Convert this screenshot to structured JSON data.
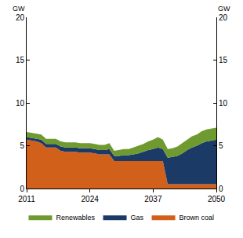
{
  "chart_data": {
    "type": "area",
    "stacked": true,
    "grid": false,
    "legend": "bottom",
    "y_label": "GW",
    "y2_label": "GW",
    "x": [
      2011,
      2012,
      2013,
      2014,
      2015,
      2016,
      2017,
      2018,
      2019,
      2020,
      2021,
      2022,
      2023,
      2024,
      2025,
      2026,
      2027,
      2028,
      2029,
      2030,
      2031,
      2032,
      2033,
      2034,
      2035,
      2036,
      2037,
      2038,
      2039,
      2040,
      2041,
      2042,
      2043,
      2044,
      2045,
      2046,
      2047,
      2048,
      2049,
      2050
    ],
    "xlim": [
      2011,
      2050
    ],
    "xticks": [
      2011,
      2024,
      2037,
      2050
    ],
    "ylim": [
      0,
      20
    ],
    "yticks": [
      0,
      5,
      10,
      15,
      20
    ],
    "y2lim": [
      0,
      20
    ],
    "y2ticks": [
      0,
      5,
      10,
      15,
      20
    ],
    "series": [
      {
        "name": "Brown coal",
        "color": "#d0601a",
        "values": [
          5.7,
          5.6,
          5.5,
          5.3,
          4.8,
          4.8,
          4.8,
          4.4,
          4.3,
          4.3,
          4.3,
          4.2,
          4.2,
          4.2,
          4.1,
          4.0,
          4.0,
          4.0,
          3.2,
          3.2,
          3.2,
          3.2,
          3.2,
          3.2,
          3.2,
          3.2,
          3.2,
          3.2,
          3.2,
          0.5,
          0.5,
          0.5,
          0.5,
          0.5,
          0.5,
          0.5,
          0.5,
          0.5,
          0.5,
          0.5
        ]
      },
      {
        "name": "Gas",
        "color": "#1c3a66",
        "values": [
          0.3,
          0.3,
          0.3,
          0.4,
          0.4,
          0.4,
          0.4,
          0.5,
          0.5,
          0.5,
          0.5,
          0.5,
          0.5,
          0.5,
          0.5,
          0.5,
          0.5,
          0.6,
          0.6,
          0.6,
          0.7,
          0.7,
          0.8,
          0.9,
          1.1,
          1.3,
          1.4,
          1.6,
          1.4,
          3.1,
          3.2,
          3.3,
          3.6,
          4.0,
          4.3,
          4.5,
          4.8,
          5.0,
          5.1,
          5.2
        ]
      },
      {
        "name": "Renewables",
        "color": "#6f9a30",
        "values": [
          0.6,
          0.6,
          0.6,
          0.6,
          0.6,
          0.6,
          0.6,
          0.6,
          0.6,
          0.6,
          0.6,
          0.6,
          0.6,
          0.6,
          0.6,
          0.6,
          0.6,
          0.7,
          0.6,
          0.7,
          0.7,
          0.7,
          0.8,
          0.9,
          0.9,
          1.0,
          1.1,
          1.2,
          1.1,
          1.0,
          1.0,
          1.1,
          1.2,
          1.2,
          1.3,
          1.3,
          1.4,
          1.4,
          1.4,
          1.4
        ]
      }
    ]
  }
}
